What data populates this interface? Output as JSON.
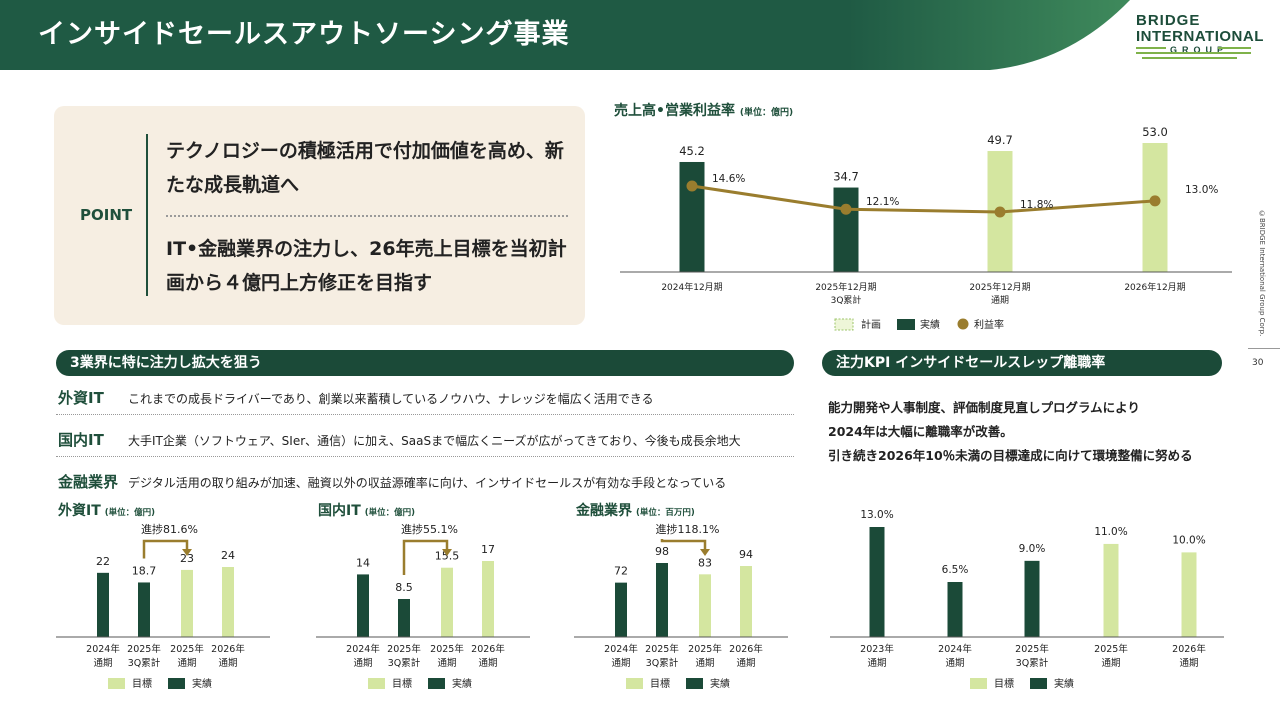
{
  "header": {
    "title": "インサイドセールスアウトソーシング事業",
    "logo_line1": "BRIDGE",
    "logo_line2": "INTERNATIONAL",
    "logo_line3": "GROUP"
  },
  "copyright": "©BRIDGE International Group Corp.",
  "page_number": "30",
  "point": {
    "label": "POINT",
    "text1": "テクノロジーの積極活用で付加価値を高め、新たな成長軌道へ",
    "text2": "IT•金融業界の注力し、26年売上目標を当初計画から４億円上方修正を目指す"
  },
  "main_chart": {
    "title": "売上高•営業利益率",
    "unit": "(単位：億円)"
  },
  "section1": {
    "title": "3業界に特に注力し拡大を狙う"
  },
  "section2": {
    "title": "注力KPI インサイドセールスレップ離職率"
  },
  "industries": [
    {
      "name": "外資IT",
      "desc": "これまでの成長ドライバーであり、創業以来蓄積しているノウハウ、ナレッジを幅広く活用できる"
    },
    {
      "name": "国内IT",
      "desc": "大手IT企業（ソフトウェア、SIer、通信）に加え、SaaSまで幅広くニーズが広がってきており、今後も成長余地大"
    },
    {
      "name": "金融業界",
      "desc": "デジタル活用の取り組みが加速、融資以外の収益源確率に向け、インサイドセールスが有効な手段となっている"
    }
  ],
  "kpi": {
    "lines": [
      "能力開発や人事制度、評価制度見直しプログラムにより",
      "2024年は大幅に離職率が改善。",
      "引き続き2026年10％未満の目標達成に向けて環境整備に努める"
    ]
  },
  "colors": {
    "dark_green": "#1b4a38",
    "light_green": "#d4e6a0",
    "line_gold": "#9a7d2e",
    "header_green": "#1f5a44"
  },
  "chart_data": [
    {
      "id": "main",
      "type": "bar",
      "title": "売上高•営業利益率",
      "unit": "(単位：億円)",
      "categories": [
        [
          "2024年12月期"
        ],
        [
          "2025年12月期",
          "3Q累計"
        ],
        [
          "2025年12月期",
          "通期"
        ],
        [
          "2026年12月期"
        ]
      ],
      "series": [
        {
          "name": "実績",
          "values": [
            45.2,
            34.7,
            null,
            null
          ]
        },
        {
          "name": "計画",
          "values": [
            null,
            null,
            49.7,
            53.0
          ]
        },
        {
          "name": "利益率",
          "type": "line",
          "values": [
            14.6,
            12.1,
            11.8,
            13.0
          ]
        }
      ],
      "bar_labels": [
        "45.2",
        "34.7",
        "49.7",
        "53.0"
      ],
      "line_labels": [
        "14.6%",
        "12.1%",
        "11.8%",
        "13.0%"
      ],
      "legend": [
        "計画",
        "実績",
        "利益率"
      ]
    },
    {
      "id": "fit",
      "type": "bar",
      "title": "外資IT",
      "unit": "(単位：億円)",
      "categories": [
        [
          "2024年",
          "通期"
        ],
        [
          "2025年",
          "3Q累計"
        ],
        [
          "2025年",
          "通期"
        ],
        [
          "2026年",
          "通期"
        ]
      ],
      "values": [
        22,
        18.7,
        23,
        24
      ],
      "labels": [
        "22",
        "18.7",
        "23",
        "24"
      ],
      "kinds": [
        "actual",
        "actual",
        "target",
        "target"
      ],
      "progress": "進捗81.6%",
      "legend": [
        "目標",
        "実績"
      ]
    },
    {
      "id": "dit",
      "type": "bar",
      "title": "国内IT",
      "unit": "(単位：億円)",
      "categories": [
        [
          "2024年",
          "通期"
        ],
        [
          "2025年",
          "3Q累計"
        ],
        [
          "2025年",
          "通期"
        ],
        [
          "2026年",
          "通期"
        ]
      ],
      "values": [
        14,
        8.5,
        15.5,
        17
      ],
      "labels": [
        "14",
        "8.5",
        "15.5",
        "17"
      ],
      "kinds": [
        "actual",
        "actual",
        "target",
        "target"
      ],
      "progress": "進捗55.1%",
      "legend": [
        "目標",
        "実績"
      ]
    },
    {
      "id": "fin",
      "type": "bar",
      "title": "金融業界",
      "unit": "(単位：百万円)",
      "categories": [
        [
          "2024年",
          "通期"
        ],
        [
          "2025年",
          "3Q累計"
        ],
        [
          "2025年",
          "通期"
        ],
        [
          "2026年",
          "通期"
        ]
      ],
      "values": [
        72,
        98,
        83,
        94
      ],
      "labels": [
        "72",
        "98",
        "83",
        "94"
      ],
      "kinds": [
        "actual",
        "actual",
        "target",
        "target"
      ],
      "progress": "進捗118.1%",
      "legend": [
        "目標",
        "実績"
      ]
    },
    {
      "id": "kpi",
      "type": "bar",
      "title": "注力KPI インサイドセールスレップ離職率",
      "categories": [
        [
          "2023年",
          "通期"
        ],
        [
          "2024年",
          "通期"
        ],
        [
          "2025年",
          "3Q累計"
        ],
        [
          "2025年",
          "通期"
        ],
        [
          "2026年",
          "通期"
        ]
      ],
      "values": [
        13.0,
        6.5,
        9.0,
        11.0,
        10.0
      ],
      "labels": [
        "13.0%",
        "6.5%",
        "9.0%",
        "11.0%",
        "10.0%"
      ],
      "kinds": [
        "actual",
        "actual",
        "actual",
        "target",
        "target"
      ],
      "legend": [
        "目標",
        "実績"
      ]
    }
  ]
}
